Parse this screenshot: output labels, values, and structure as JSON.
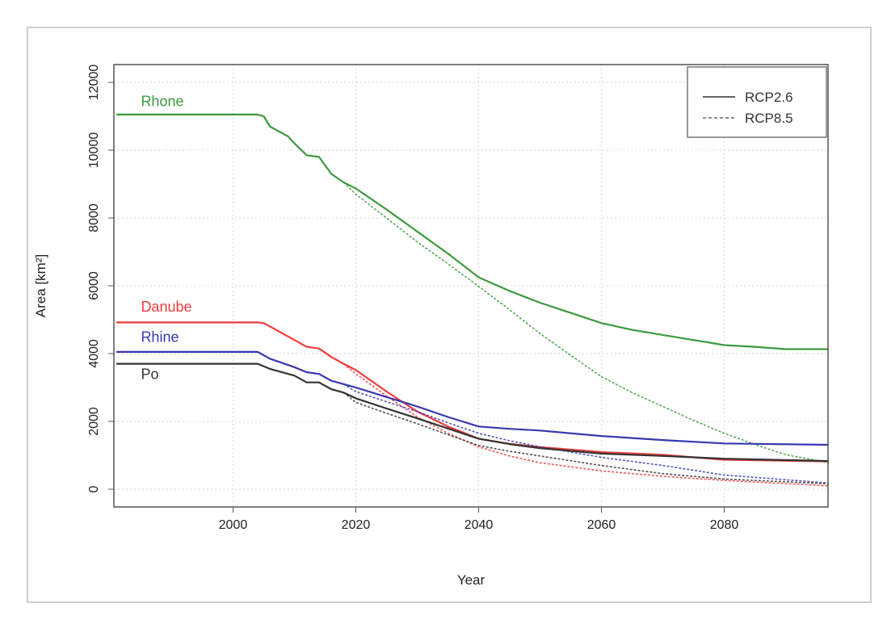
{
  "chart_data": {
    "type": "line",
    "title": "",
    "xlabel": "Year",
    "ylabel": "Area [km²]",
    "xlim": [
      1980.6,
      2096.9
    ],
    "ylim": [
      -524,
      12524
    ],
    "xticks": [
      2000,
      2020,
      2040,
      2060,
      2080
    ],
    "yticks": [
      0,
      2000,
      4000,
      6000,
      8000,
      10000,
      12000
    ],
    "grid": true,
    "legend": {
      "position": "top-right",
      "entries": [
        {
          "label": "RCP2.6",
          "style": "solid"
        },
        {
          "label": "RCP8.5",
          "style": "dashed"
        }
      ]
    },
    "colors": {
      "Rhone": "#3d9a3d",
      "Danube": "#f03c3c",
      "Rhine": "#3838b0",
      "Po": "#333333"
    },
    "series": [
      {
        "name": "Rhone",
        "scenario": "RCP2.6",
        "x": [
          1981,
          2004,
          2005,
          2006,
          2009,
          2010,
          2012,
          2014,
          2016,
          2018,
          2020,
          2025,
          2030,
          2035,
          2040,
          2045,
          2050,
          2055,
          2060,
          2065,
          2070,
          2075,
          2080,
          2085,
          2090,
          2097
        ],
        "y": [
          11050,
          11050,
          11000,
          10700,
          10400,
          10200,
          9850,
          9800,
          9300,
          9050,
          8870,
          8250,
          7600,
          6950,
          6250,
          5850,
          5500,
          5200,
          4900,
          4700,
          4550,
          4400,
          4250,
          4200,
          4130,
          4130
        ]
      },
      {
        "name": "Rhone",
        "scenario": "RCP8.5",
        "x": [
          2018,
          2020,
          2025,
          2030,
          2035,
          2040,
          2045,
          2050,
          2055,
          2060,
          2065,
          2070,
          2075,
          2080,
          2085,
          2090,
          2097
        ],
        "y": [
          9050,
          8700,
          8000,
          7290,
          6650,
          5980,
          5300,
          4590,
          3950,
          3320,
          2850,
          2440,
          2030,
          1650,
          1320,
          1020,
          780
        ]
      },
      {
        "name": "Danube",
        "scenario": "RCP2.6",
        "x": [
          1981,
          2004,
          2005,
          2008,
          2010,
          2012,
          2014,
          2016,
          2018,
          2020,
          2025,
          2030,
          2035,
          2040,
          2045,
          2050,
          2060,
          2070,
          2080,
          2097
        ],
        "y": [
          4920,
          4920,
          4900,
          4600,
          4400,
          4200,
          4150,
          3900,
          3700,
          3515,
          2880,
          2290,
          1850,
          1490,
          1340,
          1240,
          1095,
          1015,
          870,
          820
        ]
      },
      {
        "name": "Danube",
        "scenario": "RCP8.5",
        "x": [
          2018,
          2020,
          2025,
          2030,
          2035,
          2040,
          2045,
          2050,
          2060,
          2070,
          2080,
          2097
        ],
        "y": [
          3700,
          3400,
          2750,
          2130,
          1650,
          1250,
          980,
          780,
          540,
          380,
          260,
          100
        ]
      },
      {
        "name": "Rhine",
        "scenario": "RCP2.6",
        "x": [
          1981,
          2004,
          2006,
          2010,
          2012,
          2014,
          2016,
          2018,
          2020,
          2025,
          2030,
          2035,
          2040,
          2045,
          2050,
          2060,
          2070,
          2080,
          2097
        ],
        "y": [
          4050,
          4050,
          3850,
          3600,
          3450,
          3400,
          3200,
          3100,
          3000,
          2720,
          2440,
          2130,
          1850,
          1780,
          1730,
          1570,
          1450,
          1350,
          1310
        ]
      },
      {
        "name": "Rhine",
        "scenario": "RCP8.5",
        "x": [
          2018,
          2020,
          2025,
          2030,
          2035,
          2040,
          2045,
          2050,
          2060,
          2070,
          2080,
          2097
        ],
        "y": [
          3100,
          2880,
          2580,
          2290,
          1960,
          1650,
          1430,
          1250,
          940,
          700,
          420,
          180
        ]
      },
      {
        "name": "Po",
        "scenario": "RCP2.6",
        "x": [
          1981,
          2004,
          2006,
          2010,
          2012,
          2014,
          2016,
          2018,
          2020,
          2025,
          2030,
          2035,
          2040,
          2045,
          2050,
          2060,
          2070,
          2080,
          2097
        ],
        "y": [
          3700,
          3700,
          3550,
          3350,
          3150,
          3150,
          2950,
          2850,
          2680,
          2380,
          2090,
          1790,
          1490,
          1330,
          1210,
          1050,
          980,
          900,
          830
        ]
      },
      {
        "name": "Po",
        "scenario": "RCP8.5",
        "x": [
          2018,
          2020,
          2025,
          2030,
          2035,
          2040,
          2045,
          2050,
          2060,
          2070,
          2080,
          2097
        ],
        "y": [
          2850,
          2560,
          2240,
          1930,
          1610,
          1290,
          1120,
          980,
          700,
          460,
          300,
          160
        ]
      }
    ],
    "annotations": [
      {
        "text": "Rhone",
        "color_key": "Rhone",
        "x": 1985,
        "y": 11300
      },
      {
        "text": "Danube",
        "color_key": "Danube",
        "x": 1985,
        "y": 5240
      },
      {
        "text": "Rhine",
        "color_key": "Rhine",
        "x": 1985,
        "y": 4350
      },
      {
        "text": "Po",
        "color_key": "Po",
        "x": 1985,
        "y": 3250
      }
    ]
  }
}
